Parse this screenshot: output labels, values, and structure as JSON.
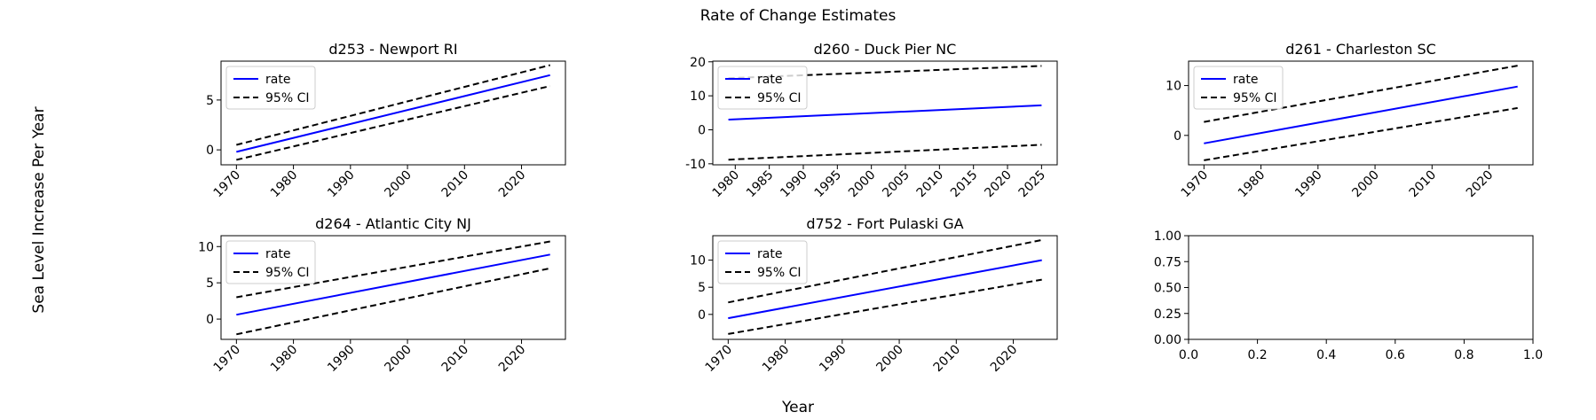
{
  "figure": {
    "suptitle": "Rate of Change Estimates",
    "supxlabel": "Year",
    "supylabel": "Sea Level Increase Per Year"
  },
  "colors": {
    "rate": "#0000ff",
    "ci": "#000000"
  },
  "chart_data": [
    {
      "type": "line",
      "title": "d253 - Newport RI",
      "xlim": [
        1967.3,
        2027.7
      ],
      "ylim": [
        -1.5,
        8.9
      ],
      "xticks": [
        1970,
        1980,
        1990,
        2000,
        2010,
        2020
      ],
      "yticks": [
        0,
        5
      ],
      "legend": {
        "position": "upper-left",
        "entries": [
          "rate",
          "95% CI"
        ]
      },
      "grid": false,
      "series": [
        {
          "name": "rate",
          "style": "solid",
          "x": [
            1970,
            2025
          ],
          "y": [
            -0.2,
            7.5
          ]
        },
        {
          "name": "95% CI",
          "style": "dashed",
          "x": [
            1970,
            2025
          ],
          "y": [
            0.5,
            8.5
          ]
        },
        {
          "name": "",
          "style": "dashed",
          "x": [
            1970,
            2025
          ],
          "y": [
            -1.0,
            6.4
          ]
        }
      ]
    },
    {
      "type": "line",
      "title": "d260 - Duck Pier NC",
      "xlim": [
        1976.7,
        2027.3
      ],
      "ylim": [
        -10.3,
        20.2
      ],
      "xticks": [
        1980,
        1985,
        1990,
        1995,
        2000,
        2005,
        2010,
        2015,
        2020,
        2025
      ],
      "yticks": [
        -10,
        0,
        10,
        20
      ],
      "legend": {
        "position": "upper-left",
        "entries": [
          "rate",
          "95% CI"
        ]
      },
      "grid": false,
      "series": [
        {
          "name": "rate",
          "style": "solid",
          "x": [
            1979,
            2025
          ],
          "y": [
            3.0,
            7.2
          ]
        },
        {
          "name": "95% CI",
          "style": "dashed",
          "x": [
            1979,
            2025
          ],
          "y": [
            15.2,
            18.8
          ]
        },
        {
          "name": "",
          "style": "dashed",
          "x": [
            1979,
            2025
          ],
          "y": [
            -8.8,
            -4.4
          ]
        }
      ]
    },
    {
      "type": "line",
      "title": "d261 - Charleston SC",
      "xlim": [
        1967.3,
        2027.7
      ],
      "ylim": [
        -5.9,
        14.9
      ],
      "xticks": [
        1970,
        1980,
        1990,
        2000,
        2010,
        2020
      ],
      "yticks": [
        0,
        10
      ],
      "legend": {
        "position": "upper-left",
        "entries": [
          "rate",
          "95% CI"
        ]
      },
      "grid": false,
      "series": [
        {
          "name": "rate",
          "style": "solid",
          "x": [
            1970,
            2025
          ],
          "y": [
            -1.6,
            9.8
          ]
        },
        {
          "name": "95% CI",
          "style": "dashed",
          "x": [
            1970,
            2025
          ],
          "y": [
            2.7,
            14.0
          ]
        },
        {
          "name": "",
          "style": "dashed",
          "x": [
            1970,
            2025
          ],
          "y": [
            -5.0,
            5.5
          ]
        }
      ]
    },
    {
      "type": "line",
      "title": "d264 - Atlantic City NJ",
      "xlim": [
        1967.3,
        2027.7
      ],
      "ylim": [
        -2.8,
        11.5
      ],
      "xticks": [
        1970,
        1980,
        1990,
        2000,
        2010,
        2020
      ],
      "yticks": [
        0,
        5,
        10
      ],
      "legend": {
        "position": "upper-left",
        "entries": [
          "rate",
          "95% CI"
        ]
      },
      "grid": false,
      "series": [
        {
          "name": "rate",
          "style": "solid",
          "x": [
            1970,
            2025
          ],
          "y": [
            0.6,
            8.9
          ]
        },
        {
          "name": "95% CI",
          "style": "dashed",
          "x": [
            1970,
            2025
          ],
          "y": [
            3.0,
            10.7
          ]
        },
        {
          "name": "",
          "style": "dashed",
          "x": [
            1970,
            2025
          ],
          "y": [
            -2.1,
            7.0
          ]
        }
      ]
    },
    {
      "type": "line",
      "title": "d752 - Fort Pulaski GA",
      "xlim": [
        1967.3,
        2027.7
      ],
      "ylim": [
        -4.6,
        14.5
      ],
      "xticks": [
        1970,
        1980,
        1990,
        2000,
        2010,
        2020
      ],
      "yticks": [
        0,
        5,
        10
      ],
      "legend": {
        "position": "upper-left",
        "entries": [
          "rate",
          "95% CI"
        ]
      },
      "grid": false,
      "series": [
        {
          "name": "rate",
          "style": "solid",
          "x": [
            1970,
            2025
          ],
          "y": [
            -0.7,
            10.0
          ]
        },
        {
          "name": "95% CI",
          "style": "dashed",
          "x": [
            1970,
            2025
          ],
          "y": [
            2.2,
            13.7
          ]
        },
        {
          "name": "",
          "style": "dashed",
          "x": [
            1970,
            2025
          ],
          "y": [
            -3.6,
            6.4
          ]
        }
      ]
    },
    {
      "type": "line",
      "title": "",
      "xlim": [
        0.0,
        1.0
      ],
      "ylim": [
        0.0,
        1.0
      ],
      "xticks": [
        0.0,
        0.2,
        0.4,
        0.6,
        0.8,
        1.0
      ],
      "yticks": [
        0.0,
        0.25,
        0.5,
        0.75,
        1.0
      ],
      "xtick_labels": [
        "0.0",
        "0.2",
        "0.4",
        "0.6",
        "0.8",
        "1.0"
      ],
      "ytick_labels": [
        "0.00",
        "0.25",
        "0.50",
        "0.75",
        "1.00"
      ],
      "legend": null,
      "grid": false,
      "series": []
    }
  ]
}
